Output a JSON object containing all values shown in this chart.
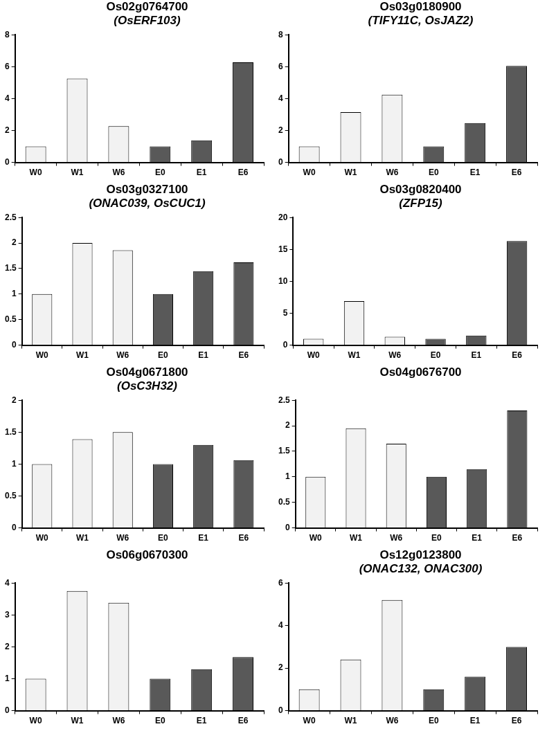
{
  "chart_data": [
    {
      "type": "bar",
      "title": "Os02g0764700",
      "subtitle": "(OsERF103)",
      "categories": [
        "W0",
        "W1",
        "W6",
        "E0",
        "E1",
        "E6"
      ],
      "values": [
        1,
        5.25,
        2.27,
        1,
        1.38,
        6.27
      ],
      "colors": [
        "#f2f2f2",
        "#f2f2f2",
        "#f2f2f2",
        "#595959",
        "#595959",
        "#595959"
      ],
      "ylim": [
        0,
        8
      ],
      "yticks": [
        0,
        2,
        4,
        6,
        8
      ],
      "grid": false,
      "legend": false
    },
    {
      "type": "bar",
      "title": "Os03g0180900",
      "subtitle": "(TIFY11C, OsJAZ2)",
      "categories": [
        "W0",
        "W1",
        "W6",
        "E0",
        "E1",
        "E6"
      ],
      "values": [
        1,
        3.15,
        4.25,
        1,
        2.47,
        6.05
      ],
      "colors": [
        "#f2f2f2",
        "#f2f2f2",
        "#f2f2f2",
        "#595959",
        "#595959",
        "#595959"
      ],
      "ylim": [
        0,
        8
      ],
      "yticks": [
        0,
        2,
        4,
        6,
        8
      ],
      "grid": false,
      "legend": false
    },
    {
      "type": "bar",
      "title": "Os03g0327100",
      "subtitle": "(ONAC039, OsCUC1)",
      "categories": [
        "W0",
        "W1",
        "W6",
        "E0",
        "E1",
        "E6"
      ],
      "values": [
        1,
        2.0,
        1.86,
        1,
        1.45,
        1.62
      ],
      "colors": [
        "#f2f2f2",
        "#f2f2f2",
        "#f2f2f2",
        "#595959",
        "#595959",
        "#595959"
      ],
      "ylim": [
        0,
        2.5
      ],
      "yticks": [
        0,
        0.5,
        1,
        1.5,
        2,
        2.5
      ],
      "grid": false,
      "legend": false
    },
    {
      "type": "bar",
      "title": "Os03g0820400",
      "subtitle": "(ZFP15)",
      "categories": [
        "W0",
        "W1",
        "W6",
        "E0",
        "E1",
        "E6"
      ],
      "values": [
        1,
        6.9,
        1.3,
        1,
        1.5,
        16.3
      ],
      "colors": [
        "#f2f2f2",
        "#f2f2f2",
        "#f2f2f2",
        "#595959",
        "#595959",
        "#595959"
      ],
      "ylim": [
        0,
        20
      ],
      "yticks": [
        0,
        5,
        10,
        15,
        20
      ],
      "grid": false,
      "legend": false
    },
    {
      "type": "bar",
      "title": "Os04g0671800",
      "subtitle": "(OsC3H32)",
      "categories": [
        "W0",
        "W1",
        "W6",
        "E0",
        "E1",
        "E6"
      ],
      "values": [
        1,
        1.39,
        1.5,
        1,
        1.3,
        1.06
      ],
      "colors": [
        "#f2f2f2",
        "#f2f2f2",
        "#f2f2f2",
        "#595959",
        "#595959",
        "#595959"
      ],
      "ylim": [
        0,
        2
      ],
      "yticks": [
        0,
        0.5,
        1,
        1.5,
        2
      ],
      "grid": false,
      "legend": false
    },
    {
      "type": "bar",
      "title": "Os04g0676700",
      "categories": [
        "W0",
        "W1",
        "W6",
        "E0",
        "E1",
        "E6"
      ],
      "values": [
        1,
        1.95,
        1.65,
        1,
        1.15,
        2.3
      ],
      "colors": [
        "#f2f2f2",
        "#f2f2f2",
        "#f2f2f2",
        "#595959",
        "#595959",
        "#595959"
      ],
      "ylim": [
        0,
        2.5
      ],
      "yticks": [
        0,
        0.5,
        1,
        1.5,
        2,
        2.5
      ],
      "grid": false,
      "legend": false
    },
    {
      "type": "bar",
      "title": "Os06g0670300",
      "categories": [
        "W0",
        "W1",
        "W6",
        "E0",
        "E1",
        "E6"
      ],
      "values": [
        1,
        3.75,
        3.38,
        1,
        1.3,
        1.68
      ],
      "colors": [
        "#f2f2f2",
        "#f2f2f2",
        "#f2f2f2",
        "#595959",
        "#595959",
        "#595959"
      ],
      "ylim": [
        0,
        4
      ],
      "yticks": [
        0,
        1,
        2,
        3,
        4
      ],
      "grid": false,
      "legend": false
    },
    {
      "type": "bar",
      "title": "Os12g0123800",
      "subtitle": "(ONAC132, ONAC300)",
      "categories": [
        "W0",
        "W1",
        "W6",
        "E0",
        "E1",
        "E6"
      ],
      "values": [
        1,
        2.4,
        5.2,
        1,
        1.6,
        3.0
      ],
      "colors": [
        "#f2f2f2",
        "#f2f2f2",
        "#f2f2f2",
        "#595959",
        "#595959",
        "#595959"
      ],
      "ylim": [
        0,
        6
      ],
      "yticks": [
        0,
        2,
        4,
        6
      ],
      "grid": false,
      "legend": false
    }
  ]
}
